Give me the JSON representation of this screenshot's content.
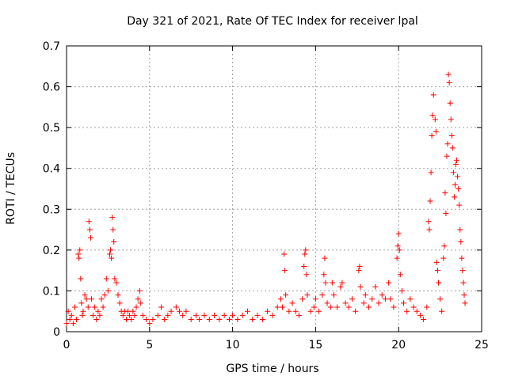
{
  "chart_data": {
    "type": "scatter",
    "title": "Day 321 of 2021, Rate Of TEC Index for receiver lpal",
    "xlabel": "GPS time / hours",
    "ylabel": "ROTI / TECUs",
    "xlim": [
      0,
      25
    ],
    "ylim": [
      0,
      0.7
    ],
    "x_ticks": [
      0,
      5,
      10,
      15,
      20,
      25
    ],
    "y_ticks": [
      0,
      0.1,
      0.2,
      0.3,
      0.4,
      0.5,
      0.6,
      0.7
    ],
    "x_tick_labels": [
      "0",
      "5",
      "10",
      "15",
      "20",
      "25"
    ],
    "y_tick_labels": [
      "0",
      "0.1",
      "0.2",
      "0.3",
      "0.4",
      "0.5",
      "0.6",
      "0.7"
    ],
    "grid": true,
    "marker": "plus",
    "series": [
      {
        "name": "ROTI",
        "color": "#ff0000",
        "points": [
          [
            0.0,
            0.02
          ],
          [
            0.1,
            0.05
          ],
          [
            0.2,
            0.03
          ],
          [
            0.3,
            0.04
          ],
          [
            0.4,
            0.02
          ],
          [
            0.5,
            0.06
          ],
          [
            0.6,
            0.03
          ],
          [
            0.7,
            0.19
          ],
          [
            0.75,
            0.18
          ],
          [
            0.8,
            0.2
          ],
          [
            0.85,
            0.13
          ],
          [
            0.9,
            0.07
          ],
          [
            0.95,
            0.04
          ],
          [
            1.0,
            0.05
          ],
          [
            1.1,
            0.09
          ],
          [
            1.2,
            0.08
          ],
          [
            1.3,
            0.06
          ],
          [
            1.35,
            0.27
          ],
          [
            1.4,
            0.25
          ],
          [
            1.45,
            0.23
          ],
          [
            1.5,
            0.08
          ],
          [
            1.6,
            0.04
          ],
          [
            1.7,
            0.06
          ],
          [
            1.8,
            0.03
          ],
          [
            1.9,
            0.05
          ],
          [
            2.0,
            0.04
          ],
          [
            2.1,
            0.08
          ],
          [
            2.2,
            0.06
          ],
          [
            2.3,
            0.09
          ],
          [
            2.4,
            0.13
          ],
          [
            2.5,
            0.1
          ],
          [
            2.6,
            0.19
          ],
          [
            2.65,
            0.2
          ],
          [
            2.7,
            0.18
          ],
          [
            2.75,
            0.28
          ],
          [
            2.8,
            0.25
          ],
          [
            2.85,
            0.22
          ],
          [
            2.9,
            0.13
          ],
          [
            3.0,
            0.12
          ],
          [
            3.1,
            0.09
          ],
          [
            3.2,
            0.07
          ],
          [
            3.3,
            0.05
          ],
          [
            3.4,
            0.04
          ],
          [
            3.5,
            0.05
          ],
          [
            3.6,
            0.03
          ],
          [
            3.7,
            0.05
          ],
          [
            3.8,
            0.04
          ],
          [
            3.9,
            0.03
          ],
          [
            4.0,
            0.05
          ],
          [
            4.1,
            0.04
          ],
          [
            4.2,
            0.06
          ],
          [
            4.3,
            0.08
          ],
          [
            4.4,
            0.1
          ],
          [
            4.45,
            0.07
          ],
          [
            4.6,
            0.04
          ],
          [
            4.8,
            0.03
          ],
          [
            5.0,
            0.02
          ],
          [
            5.2,
            0.03
          ],
          [
            5.5,
            0.04
          ],
          [
            5.7,
            0.06
          ],
          [
            5.9,
            0.03
          ],
          [
            6.1,
            0.04
          ],
          [
            6.3,
            0.05
          ],
          [
            6.6,
            0.06
          ],
          [
            6.8,
            0.05
          ],
          [
            7.0,
            0.04
          ],
          [
            7.2,
            0.05
          ],
          [
            7.5,
            0.03
          ],
          [
            7.8,
            0.04
          ],
          [
            8.0,
            0.03
          ],
          [
            8.3,
            0.04
          ],
          [
            8.6,
            0.03
          ],
          [
            8.9,
            0.04
          ],
          [
            9.2,
            0.03
          ],
          [
            9.5,
            0.04
          ],
          [
            9.8,
            0.03
          ],
          [
            10.0,
            0.04
          ],
          [
            10.3,
            0.03
          ],
          [
            10.6,
            0.04
          ],
          [
            10.9,
            0.05
          ],
          [
            11.2,
            0.03
          ],
          [
            11.5,
            0.04
          ],
          [
            11.8,
            0.03
          ],
          [
            12.1,
            0.05
          ],
          [
            12.4,
            0.04
          ],
          [
            12.7,
            0.06
          ],
          [
            12.9,
            0.08
          ],
          [
            13.0,
            0.06
          ],
          [
            13.1,
            0.19
          ],
          [
            13.15,
            0.15
          ],
          [
            13.2,
            0.09
          ],
          [
            13.4,
            0.05
          ],
          [
            13.6,
            0.07
          ],
          [
            13.8,
            0.05
          ],
          [
            14.0,
            0.04
          ],
          [
            14.2,
            0.08
          ],
          [
            14.3,
            0.16
          ],
          [
            14.35,
            0.19
          ],
          [
            14.4,
            0.2
          ],
          [
            14.45,
            0.14
          ],
          [
            14.5,
            0.09
          ],
          [
            14.7,
            0.05
          ],
          [
            14.9,
            0.06
          ],
          [
            15.0,
            0.08
          ],
          [
            15.2,
            0.05
          ],
          [
            15.4,
            0.09
          ],
          [
            15.5,
            0.14
          ],
          [
            15.55,
            0.18
          ],
          [
            15.6,
            0.12
          ],
          [
            15.7,
            0.07
          ],
          [
            15.9,
            0.06
          ],
          [
            16.0,
            0.12
          ],
          [
            16.1,
            0.09
          ],
          [
            16.3,
            0.06
          ],
          [
            16.5,
            0.11
          ],
          [
            16.6,
            0.12
          ],
          [
            16.8,
            0.07
          ],
          [
            17.0,
            0.06
          ],
          [
            17.2,
            0.08
          ],
          [
            17.4,
            0.05
          ],
          [
            17.6,
            0.15
          ],
          [
            17.65,
            0.16
          ],
          [
            17.7,
            0.11
          ],
          [
            17.9,
            0.07
          ],
          [
            18.0,
            0.09
          ],
          [
            18.2,
            0.06
          ],
          [
            18.4,
            0.08
          ],
          [
            18.6,
            0.11
          ],
          [
            18.8,
            0.07
          ],
          [
            19.0,
            0.09
          ],
          [
            19.2,
            0.08
          ],
          [
            19.4,
            0.12
          ],
          [
            19.5,
            0.08
          ],
          [
            19.7,
            0.06
          ],
          [
            19.9,
            0.18
          ],
          [
            19.95,
            0.21
          ],
          [
            20.0,
            0.24
          ],
          [
            20.05,
            0.2
          ],
          [
            20.1,
            0.14
          ],
          [
            20.2,
            0.1
          ],
          [
            20.3,
            0.07
          ],
          [
            20.5,
            0.05
          ],
          [
            20.7,
            0.08
          ],
          [
            20.9,
            0.06
          ],
          [
            21.1,
            0.05
          ],
          [
            21.3,
            0.04
          ],
          [
            21.5,
            0.03
          ],
          [
            21.7,
            0.06
          ],
          [
            21.8,
            0.27
          ],
          [
            21.85,
            0.25
          ],
          [
            21.9,
            0.32
          ],
          [
            21.95,
            0.39
          ],
          [
            22.0,
            0.48
          ],
          [
            22.05,
            0.53
          ],
          [
            22.1,
            0.58
          ],
          [
            22.2,
            0.52
          ],
          [
            22.25,
            0.49
          ],
          [
            22.3,
            0.17
          ],
          [
            22.35,
            0.15
          ],
          [
            22.4,
            0.12
          ],
          [
            22.5,
            0.08
          ],
          [
            22.6,
            0.05
          ],
          [
            22.7,
            0.18
          ],
          [
            22.75,
            0.21
          ],
          [
            22.8,
            0.34
          ],
          [
            22.85,
            0.29
          ],
          [
            22.9,
            0.43
          ],
          [
            22.95,
            0.46
          ],
          [
            23.0,
            0.63
          ],
          [
            23.05,
            0.61
          ],
          [
            23.1,
            0.56
          ],
          [
            23.15,
            0.52
          ],
          [
            23.2,
            0.48
          ],
          [
            23.25,
            0.45
          ],
          [
            23.3,
            0.39
          ],
          [
            23.35,
            0.33
          ],
          [
            23.4,
            0.36
          ],
          [
            23.45,
            0.41
          ],
          [
            23.5,
            0.42
          ],
          [
            23.55,
            0.38
          ],
          [
            23.6,
            0.35
          ],
          [
            23.65,
            0.31
          ],
          [
            23.7,
            0.25
          ],
          [
            23.75,
            0.22
          ],
          [
            23.8,
            0.18
          ],
          [
            23.85,
            0.15
          ],
          [
            23.9,
            0.12
          ],
          [
            23.95,
            0.09
          ],
          [
            24.0,
            0.07
          ]
        ]
      }
    ]
  }
}
